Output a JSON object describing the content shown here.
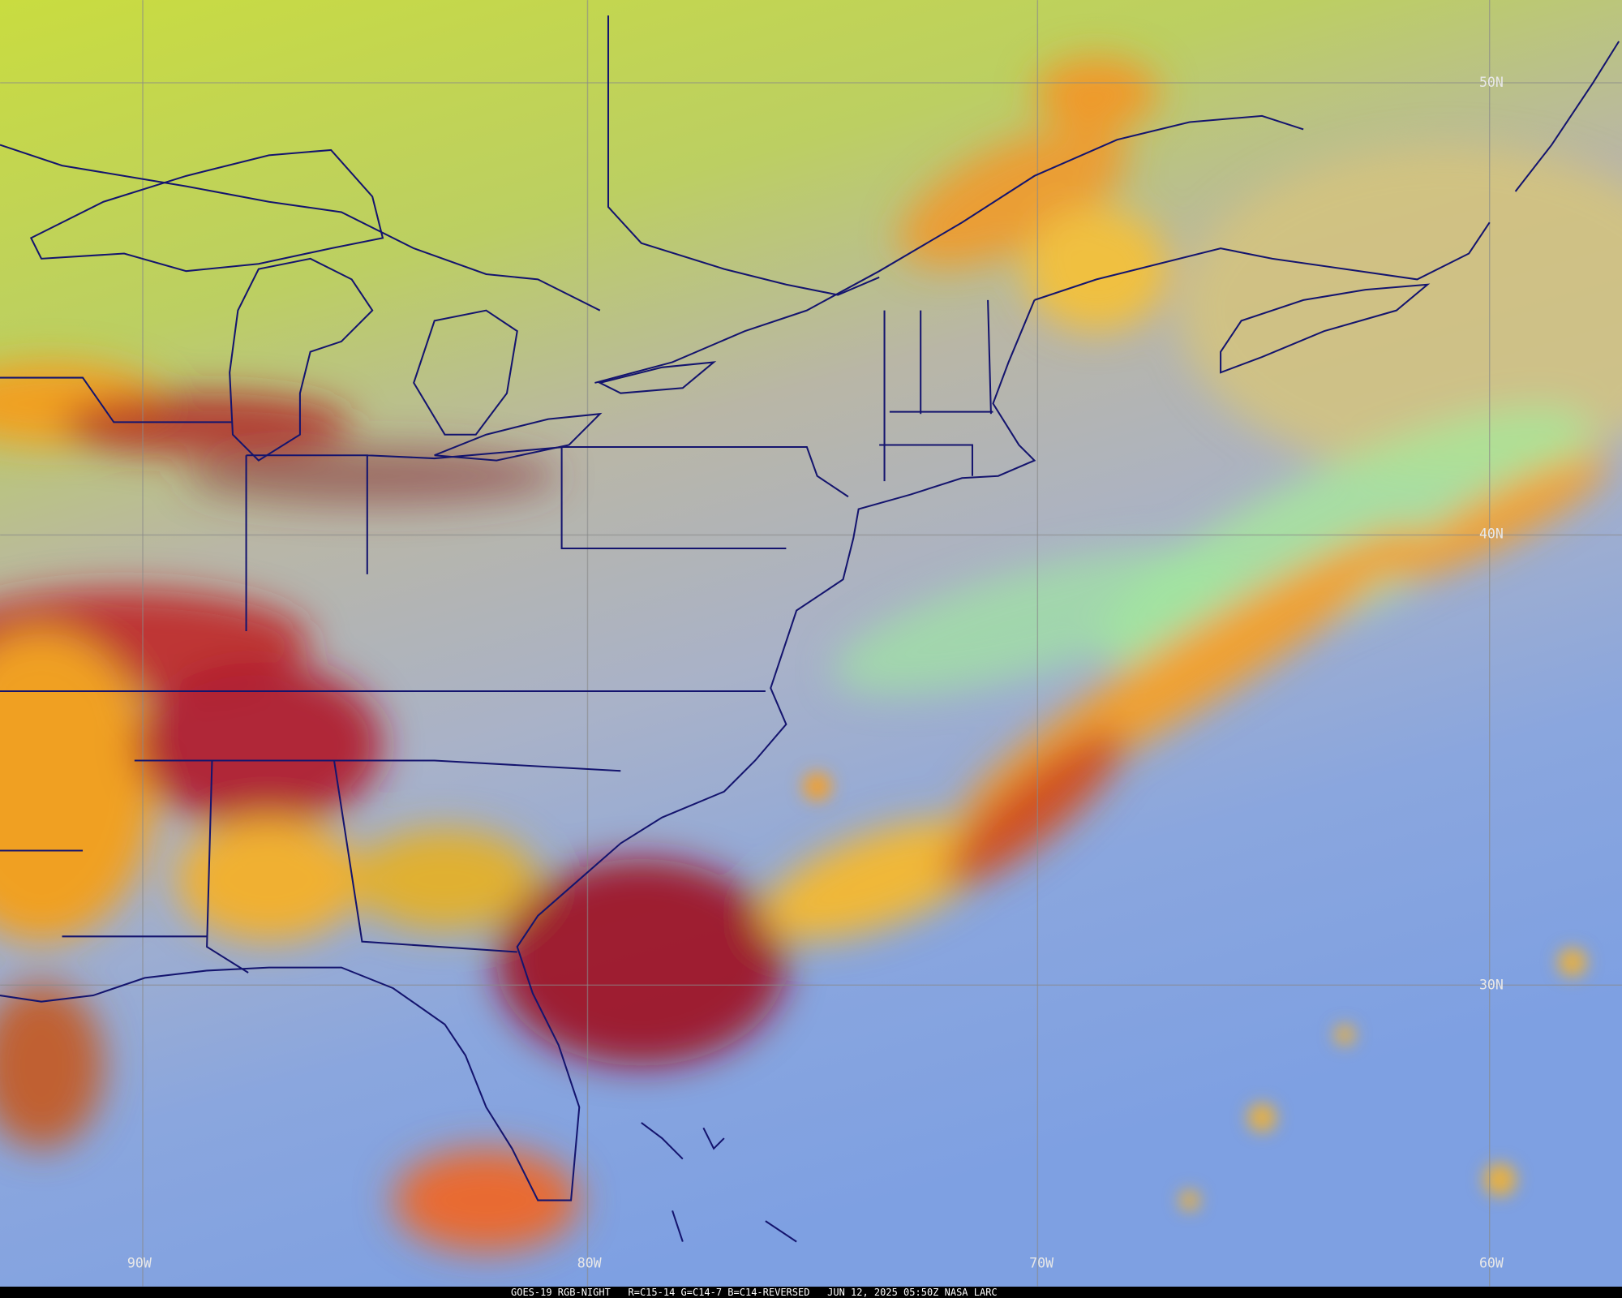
{
  "map": {
    "lat_labels": [
      "50N",
      "40N",
      "30N"
    ],
    "lon_labels": [
      "90W",
      "80W",
      "70W",
      "60W"
    ]
  },
  "footer": "GOES-19 RGB-NIGHT   R=C15-14 G=C14-7 B=C14-REVERSED   JUN 12, 2025 05:50Z NASA LARC"
}
